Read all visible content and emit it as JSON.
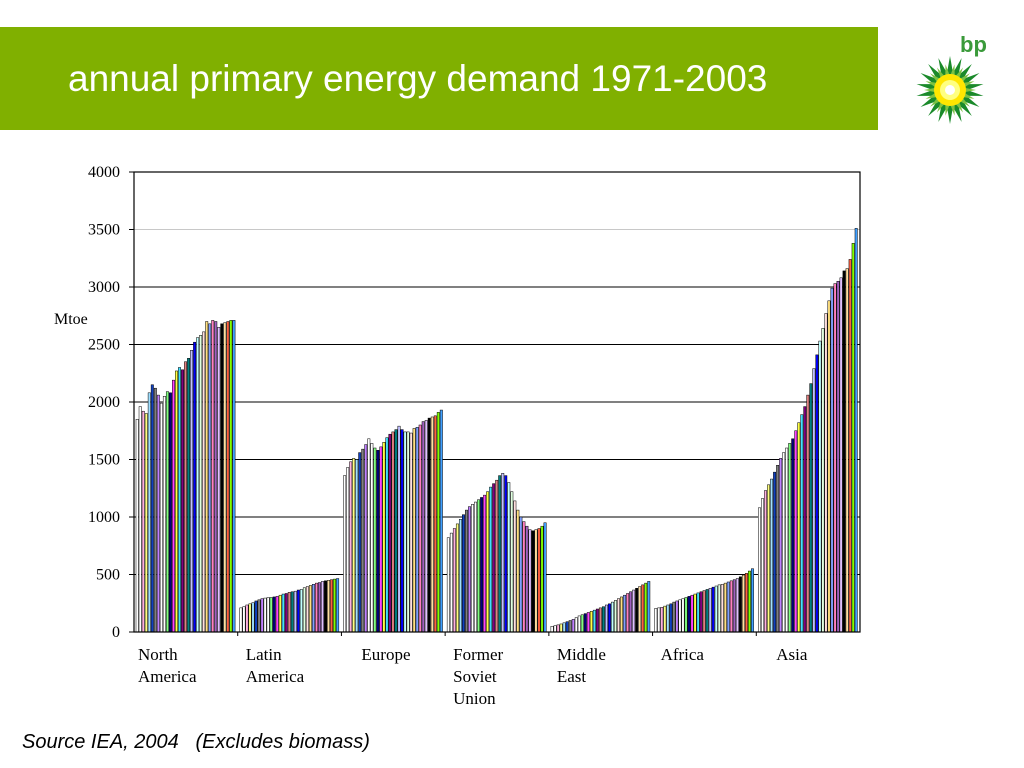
{
  "slide": {
    "title": "annual primary energy demand 1971-2003",
    "source_note": "Source IEA, 2004   (Excludes biomass)",
    "logo_text": "bp",
    "title_band_color": "#80b000",
    "logo_icon": "bp-helios-sunflower-icon"
  },
  "chart_data": {
    "type": "bar",
    "title": "",
    "ylabel": "Mtoe",
    "xlabel": "",
    "ylim": [
      0,
      4000
    ],
    "yticks": [
      "0",
      "500",
      "1000",
      "1500",
      "2000",
      "2500",
      "3000",
      "3500",
      "4000"
    ],
    "grid": true,
    "years_per_region": "1971-2003 (one bar per year)",
    "bar_colors": [
      "#ffffff",
      "#ffffff",
      "#ffb0e0",
      "#ffff80",
      "#a0e0ff",
      "#1040c0",
      "#808080",
      "#c080ff",
      "#ffffff",
      "#ffffff",
      "#80ff80",
      "#000080",
      "#ff40ff",
      "#ffff40",
      "#40e0ff",
      "#800080",
      "#e08080",
      "#008080",
      "#c0c0ff",
      "#0000ff",
      "#c0ffff",
      "#e0ffe0",
      "#ffe0e0",
      "#ffe080",
      "#80a0ff",
      "#ff80c0",
      "#a060c0",
      "#e0c0ff",
      "#000000",
      "#ffe0a0",
      "#ff6040",
      "#80ff00",
      "#40a0ff"
    ],
    "categories": [
      {
        "label_lines": [
          "North",
          "America"
        ],
        "values": [
          1850,
          1960,
          1920,
          1900,
          2080,
          2150,
          2120,
          2060,
          1990,
          2050,
          2090,
          2080,
          2190,
          2270,
          2300,
          2280,
          2350,
          2380,
          2450,
          2520,
          2560,
          2580,
          2610,
          2700,
          2680,
          2710,
          2700,
          2650,
          2680,
          2690,
          2700,
          2710,
          2710
        ]
      },
      {
        "label_lines": [
          "Latin",
          "America"
        ],
        "values": [
          210,
          220,
          235,
          245,
          255,
          270,
          280,
          290,
          295,
          300,
          300,
          305,
          310,
          320,
          330,
          335,
          345,
          350,
          355,
          365,
          370,
          385,
          395,
          405,
          415,
          425,
          430,
          440,
          445,
          450,
          455,
          460,
          465
        ]
      },
      {
        "label_lines": [
          "Europe"
        ],
        "values": [
          1360,
          1430,
          1480,
          1510,
          1500,
          1560,
          1590,
          1630,
          1680,
          1640,
          1600,
          1580,
          1610,
          1650,
          1690,
          1720,
          1740,
          1760,
          1790,
          1760,
          1740,
          1740,
          1730,
          1770,
          1780,
          1800,
          1830,
          1840,
          1860,
          1870,
          1880,
          1910,
          1930
        ]
      },
      {
        "label_lines": [
          "Former",
          "Soviet",
          "Union"
        ],
        "values": [
          820,
          860,
          900,
          940,
          980,
          1020,
          1060,
          1090,
          1110,
          1130,
          1150,
          1170,
          1190,
          1220,
          1260,
          1290,
          1320,
          1360,
          1380,
          1360,
          1300,
          1220,
          1140,
          1060,
          1000,
          960,
          920,
          890,
          880,
          890,
          900,
          920,
          950
        ]
      },
      {
        "label_lines": [
          "Middle",
          "East"
        ],
        "values": [
          50,
          55,
          62,
          70,
          80,
          90,
          100,
          110,
          125,
          140,
          150,
          160,
          170,
          180,
          190,
          200,
          210,
          220,
          235,
          245,
          260,
          275,
          290,
          305,
          320,
          335,
          350,
          365,
          380,
          395,
          410,
          425,
          440
        ]
      },
      {
        "label_lines": [
          "Africa"
        ],
        "values": [
          205,
          210,
          215,
          225,
          235,
          245,
          260,
          270,
          280,
          290,
          300,
          310,
          320,
          330,
          340,
          350,
          360,
          370,
          380,
          390,
          400,
          410,
          415,
          425,
          435,
          445,
          455,
          465,
          480,
          495,
          510,
          530,
          550
        ]
      },
      {
        "label_lines": [
          "Asia"
        ],
        "values": [
          1080,
          1160,
          1230,
          1280,
          1330,
          1390,
          1450,
          1510,
          1560,
          1600,
          1640,
          1680,
          1750,
          1820,
          1890,
          1960,
          2060,
          2160,
          2290,
          2410,
          2530,
          2640,
          2770,
          2880,
          2990,
          3030,
          3050,
          3080,
          3140,
          3160,
          3240,
          3380,
          3510
        ]
      }
    ]
  }
}
